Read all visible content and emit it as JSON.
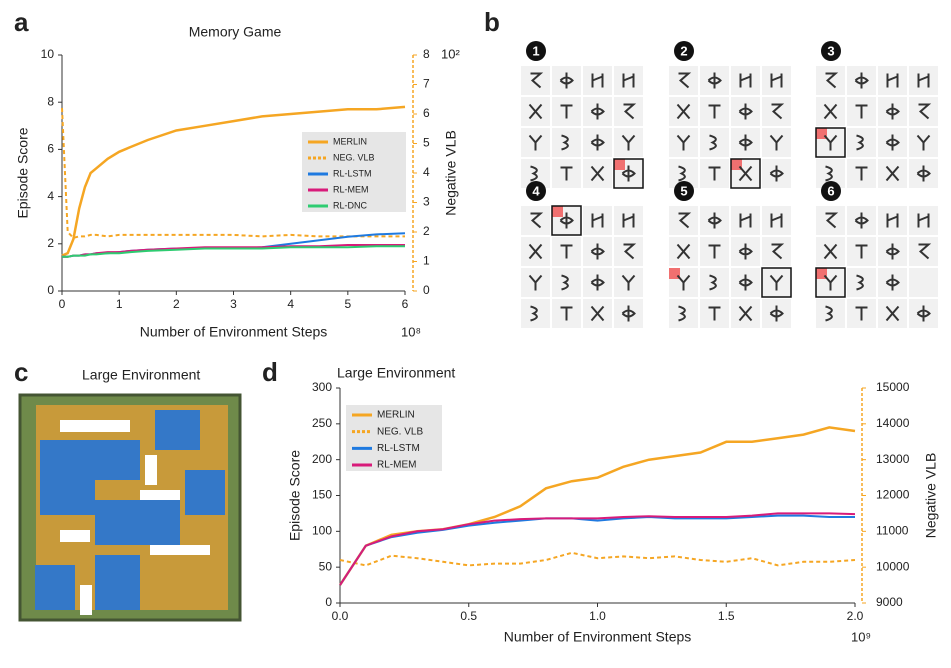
{
  "panel_labels": [
    "a",
    "b",
    "c",
    "d"
  ],
  "chart_data": [
    {
      "type": "line",
      "title": "Memory Game",
      "x_label": "Number of Environment Steps",
      "x_multiplier": "10⁸",
      "y_label": "Episode Score",
      "y2_label": "Negative VLB",
      "y2_multiplier": "10²",
      "x": [
        0,
        0.1,
        0.2,
        0.3,
        0.4,
        0.5,
        0.6,
        0.8,
        1,
        1.2,
        1.5,
        2,
        2.5,
        3,
        3.5,
        4,
        4.5,
        5,
        5.5,
        6
      ],
      "xlim": [
        0,
        6
      ],
      "xticks": [
        0,
        1,
        2,
        3,
        4,
        5,
        6
      ],
      "ylim": [
        0,
        10
      ],
      "yticks": [
        0,
        2,
        4,
        6,
        8,
        10
      ],
      "y2lim": [
        0,
        8
      ],
      "y2ticks": [
        0,
        1,
        2,
        3,
        4,
        5,
        6,
        7,
        8
      ],
      "series": [
        {
          "name": "MERLIN",
          "color": "#f5a623",
          "values": [
            1.5,
            1.6,
            2.2,
            3.5,
            4.4,
            5.0,
            5.2,
            5.6,
            5.9,
            6.1,
            6.4,
            6.8,
            7.0,
            7.2,
            7.4,
            7.5,
            7.6,
            7.7,
            7.7,
            7.8
          ]
        },
        {
          "name": "NEG. VLB",
          "color": "#f5a623",
          "axis": "y2",
          "style": "dashed",
          "values": [
            6.2,
            2.0,
            1.8,
            1.85,
            1.85,
            1.9,
            1.9,
            1.85,
            1.9,
            1.9,
            1.9,
            1.9,
            1.9,
            1.9,
            1.85,
            1.9,
            1.85,
            1.85,
            1.85,
            1.85
          ]
        },
        {
          "name": "RL-LSTM",
          "color": "#1f7ae0",
          "values": [
            1.45,
            1.45,
            1.5,
            1.5,
            1.55,
            1.55,
            1.6,
            1.6,
            1.65,
            1.7,
            1.75,
            1.8,
            1.8,
            1.8,
            1.85,
            2.0,
            2.15,
            2.3,
            2.4,
            2.45
          ]
        },
        {
          "name": "RL-MEM",
          "color": "#d81b7a",
          "values": [
            1.45,
            1.45,
            1.5,
            1.5,
            1.55,
            1.55,
            1.6,
            1.65,
            1.65,
            1.7,
            1.75,
            1.8,
            1.85,
            1.85,
            1.85,
            1.9,
            1.9,
            1.95,
            1.95,
            1.95
          ]
        },
        {
          "name": "RL-DNC",
          "color": "#2ecc71",
          "values": [
            1.45,
            1.45,
            1.5,
            1.5,
            1.5,
            1.55,
            1.55,
            1.6,
            1.6,
            1.65,
            1.7,
            1.75,
            1.8,
            1.8,
            1.8,
            1.85,
            1.85,
            1.85,
            1.9,
            1.9
          ]
        }
      ]
    },
    {
      "type": "line",
      "title": "Large Environment",
      "x_label": "Number of Environment Steps",
      "x_multiplier": "10⁹",
      "y_label": "Episode Score",
      "y2_label": "Negative VLB",
      "x": [
        0,
        0.1,
        0.2,
        0.3,
        0.4,
        0.5,
        0.6,
        0.7,
        0.8,
        0.9,
        1.0,
        1.1,
        1.2,
        1.3,
        1.4,
        1.5,
        1.6,
        1.7,
        1.8,
        1.9,
        2.0
      ],
      "xlim": [
        0,
        2
      ],
      "xticks": [
        {
          "value": 0,
          "label": "0.0"
        },
        0.5,
        {
          "value": 1,
          "label": "1.0"
        },
        1.5,
        {
          "value": 2,
          "label": "2.0"
        }
      ],
      "ylim": [
        0,
        300
      ],
      "yticks": [
        0,
        50,
        100,
        150,
        200,
        250,
        300
      ],
      "y2lim": [
        9000,
        15000
      ],
      "y2ticks": [
        9000,
        10000,
        11000,
        12000,
        13000,
        14000,
        15000
      ],
      "series": [
        {
          "name": "MERLIN",
          "color": "#f5a623",
          "values": [
            25,
            80,
            95,
            100,
            103,
            110,
            120,
            135,
            160,
            170,
            175,
            190,
            200,
            205,
            210,
            225,
            225,
            230,
            235,
            245,
            240
          ]
        },
        {
          "name": "NEG. VLB",
          "color": "#f5a623",
          "axis": "y2",
          "style": "dashed",
          "values": [
            10200,
            10050,
            10320,
            10250,
            10150,
            10050,
            10100,
            10100,
            10200,
            10400,
            10250,
            10300,
            10250,
            10300,
            10200,
            10150,
            10250,
            10050,
            10150,
            10150,
            10200
          ]
        },
        {
          "name": "RL-LSTM",
          "color": "#1f7ae0",
          "values": [
            25,
            80,
            92,
            98,
            102,
            108,
            112,
            115,
            118,
            118,
            115,
            118,
            120,
            118,
            118,
            118,
            120,
            122,
            122,
            120,
            120
          ]
        },
        {
          "name": "RL-MEM",
          "color": "#d81b7a",
          "values": [
            25,
            80,
            93,
            100,
            103,
            110,
            115,
            117,
            118,
            118,
            118,
            120,
            121,
            120,
            120,
            120,
            122,
            125,
            125,
            125,
            124
          ]
        }
      ]
    }
  ],
  "memory_grid": {
    "steps": [
      "1",
      "2",
      "3",
      "4",
      "5",
      "6"
    ]
  },
  "large_env": {
    "title": "Large Environment"
  }
}
